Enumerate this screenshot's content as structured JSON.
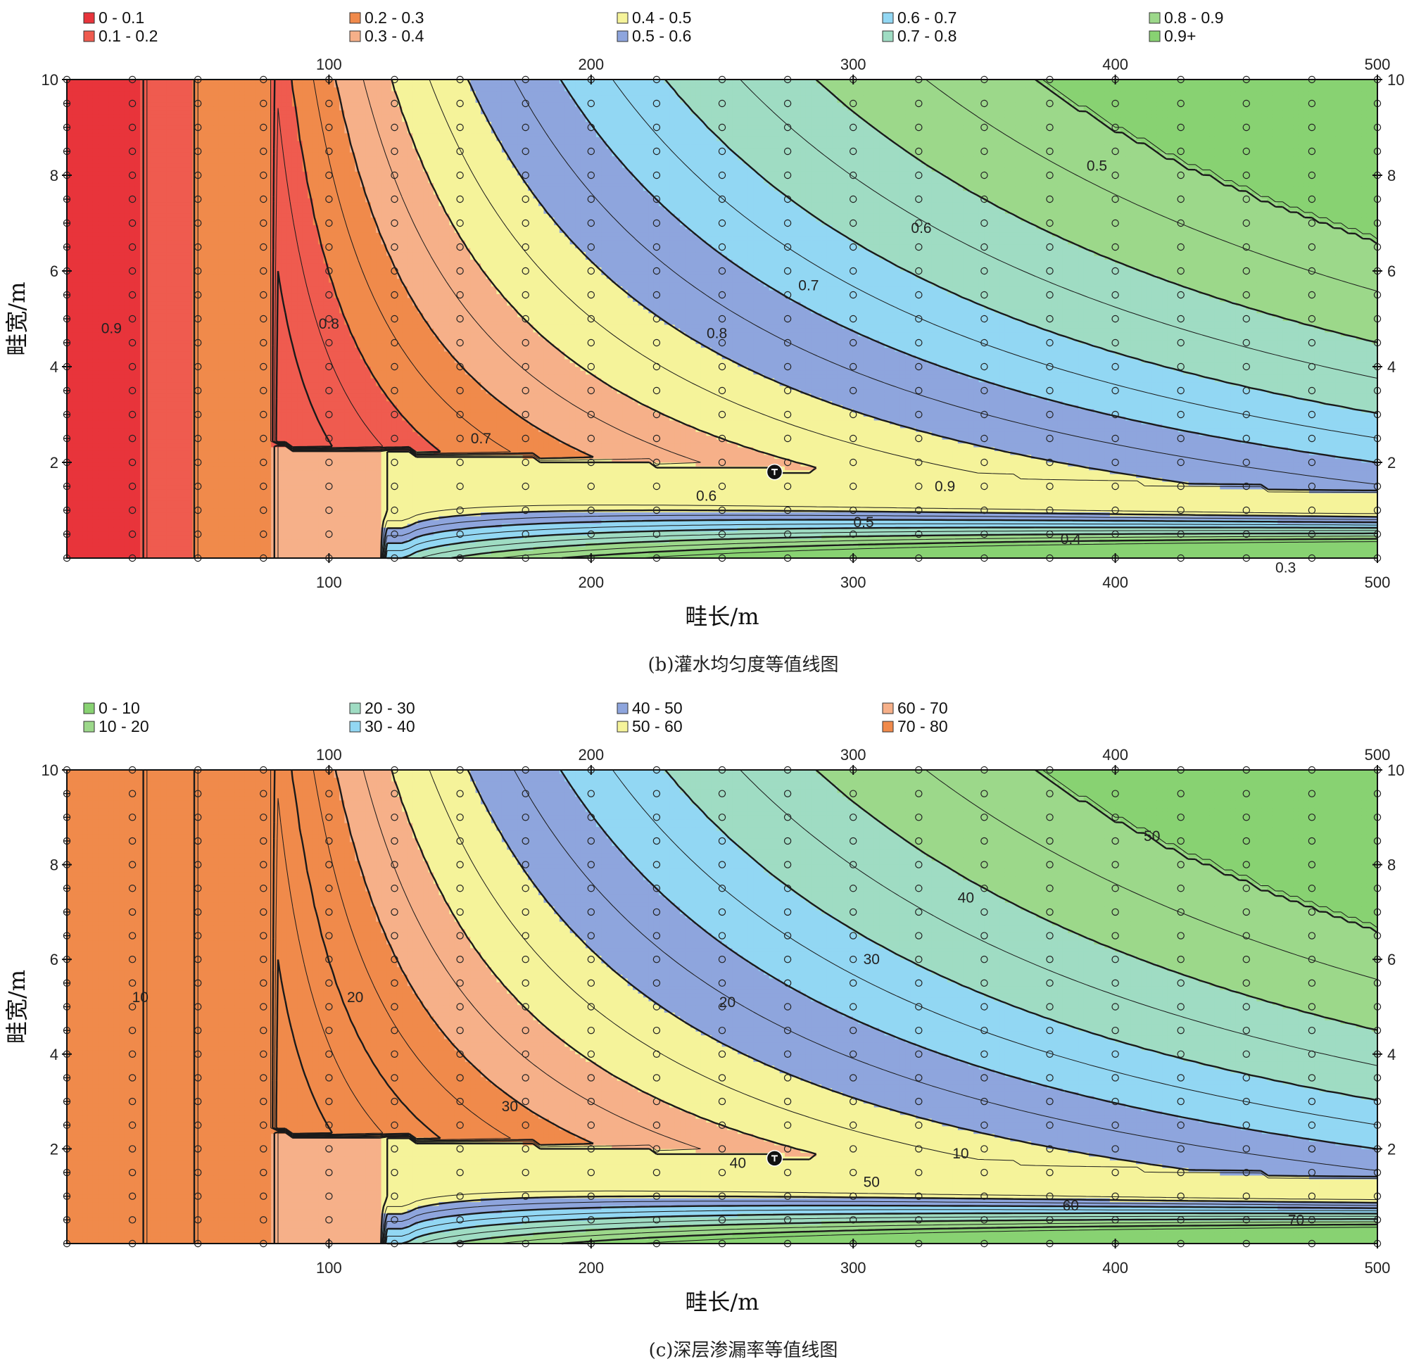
{
  "chart_data": [
    {
      "type": "contour",
      "caption": "(b)灌水均匀度等值线图",
      "xlabel": "畦长/m",
      "ylabel": "畦宽/m",
      "xlim": [
        0,
        500
      ],
      "ylim": [
        0,
        10
      ],
      "x_ticks": [
        "100",
        "200",
        "300",
        "400",
        "500"
      ],
      "y_ticks": [
        "2",
        "4",
        "6",
        "8",
        "10"
      ],
      "grid": false,
      "legend_position": "top",
      "legend": [
        {
          "label": "0 - 0.1",
          "color": "#e8343b"
        },
        {
          "label": "0.1 - 0.2",
          "color": "#ef5b4f"
        },
        {
          "label": "0.2 - 0.3",
          "color": "#f08a4b"
        },
        {
          "label": "0.3 - 0.4",
          "color": "#f6b089"
        },
        {
          "label": "0.4 - 0.5",
          "color": "#f5f39a"
        },
        {
          "label": "0.5 - 0.6",
          "color": "#8ea5dd"
        },
        {
          "label": "0.6 - 0.7",
          "color": "#92d7f3"
        },
        {
          "label": "0.7 - 0.8",
          "color": "#9fdcc3"
        },
        {
          "label": "0.8 - 0.9",
          "color": "#9cd88a"
        },
        {
          "label": "0.9+",
          "color": "#88d272"
        }
      ],
      "contour_labels": [
        {
          "text": "0.9",
          "x": 17,
          "y": 4.8
        },
        {
          "text": "0.8",
          "x": 100,
          "y": 4.9
        },
        {
          "text": "0.8",
          "x": 248,
          "y": 4.7
        },
        {
          "text": "0.7",
          "x": 283,
          "y": 5.7
        },
        {
          "text": "0.6",
          "x": 326,
          "y": 6.9
        },
        {
          "text": "0.5",
          "x": 393,
          "y": 8.2
        },
        {
          "text": "0.7",
          "x": 158,
          "y": 2.5
        },
        {
          "text": "0.6",
          "x": 244,
          "y": 1.3
        },
        {
          "text": "0.9",
          "x": 335,
          "y": 1.5
        },
        {
          "text": "0.5",
          "x": 304,
          "y": 0.75
        },
        {
          "text": "0.4",
          "x": 383,
          "y": 0.4
        },
        {
          "text": "0.3",
          "x": 465,
          "y": -0.2
        }
      ],
      "uniformity_at_x500": [
        0.3,
        0.4,
        0.5,
        0.6,
        0.7,
        0.8,
        0.9
      ]
    },
    {
      "type": "contour",
      "caption": "(c)深层渗漏率等值线图",
      "xlabel": "畦长/m",
      "ylabel": "畦宽/m",
      "xlim": [
        0,
        500
      ],
      "ylim": [
        0,
        10
      ],
      "x_ticks": [
        "100",
        "200",
        "300",
        "400",
        "500"
      ],
      "y_ticks": [
        "2",
        "4",
        "6",
        "8",
        "10"
      ],
      "grid": false,
      "legend_position": "top",
      "legend": [
        {
          "label": "0 - 10",
          "color": "#88d272"
        },
        {
          "label": "10 - 20",
          "color": "#9cd88a"
        },
        {
          "label": "20 - 30",
          "color": "#9fdcc3"
        },
        {
          "label": "30 - 40",
          "color": "#92d7f3"
        },
        {
          "label": "40 - 50",
          "color": "#8ea5dd"
        },
        {
          "label": "50 - 60",
          "color": "#f5f39a"
        },
        {
          "label": "60 - 70",
          "color": "#f6b089"
        },
        {
          "label": "70 - 80",
          "color": "#f08a4b"
        }
      ],
      "contour_labels": [
        {
          "text": "10",
          "x": 28,
          "y": 5.2
        },
        {
          "text": "20",
          "x": 110,
          "y": 5.2
        },
        {
          "text": "20",
          "x": 252,
          "y": 5.1
        },
        {
          "text": "30",
          "x": 307,
          "y": 6.0
        },
        {
          "text": "40",
          "x": 343,
          "y": 7.3
        },
        {
          "text": "50",
          "x": 414,
          "y": 8.6
        },
        {
          "text": "30",
          "x": 169,
          "y": 2.9
        },
        {
          "text": "40",
          "x": 256,
          "y": 1.7
        },
        {
          "text": "10",
          "x": 341,
          "y": 1.9
        },
        {
          "text": "50",
          "x": 307,
          "y": 1.3
        },
        {
          "text": "60",
          "x": 383,
          "y": 0.8
        },
        {
          "text": "70",
          "x": 469,
          "y": 0.5
        }
      ]
    }
  ]
}
